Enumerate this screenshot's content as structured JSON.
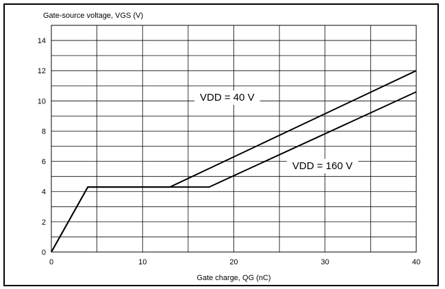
{
  "chart_data": {
    "type": "line",
    "xlabel": "Gate charge, QG (nC)",
    "ylabel": "Gate-source voltage, VGS (V)",
    "xlim": [
      0,
      40
    ],
    "ylim": [
      0,
      15
    ],
    "x_ticks": [
      0,
      10,
      20,
      30,
      40
    ],
    "y_ticks": [
      0,
      2,
      4,
      6,
      8,
      10,
      12,
      14
    ],
    "grid": true,
    "series": [
      {
        "name": "VDD = 40 V",
        "points": [
          [
            0,
            0
          ],
          [
            4,
            4.3
          ],
          [
            13,
            4.3
          ],
          [
            40,
            12.0
          ]
        ]
      },
      {
        "name": "VDD = 160 V",
        "points": [
          [
            0,
            0
          ],
          [
            4,
            4.3
          ],
          [
            17.3,
            4.3
          ],
          [
            40,
            10.6
          ]
        ]
      }
    ]
  }
}
